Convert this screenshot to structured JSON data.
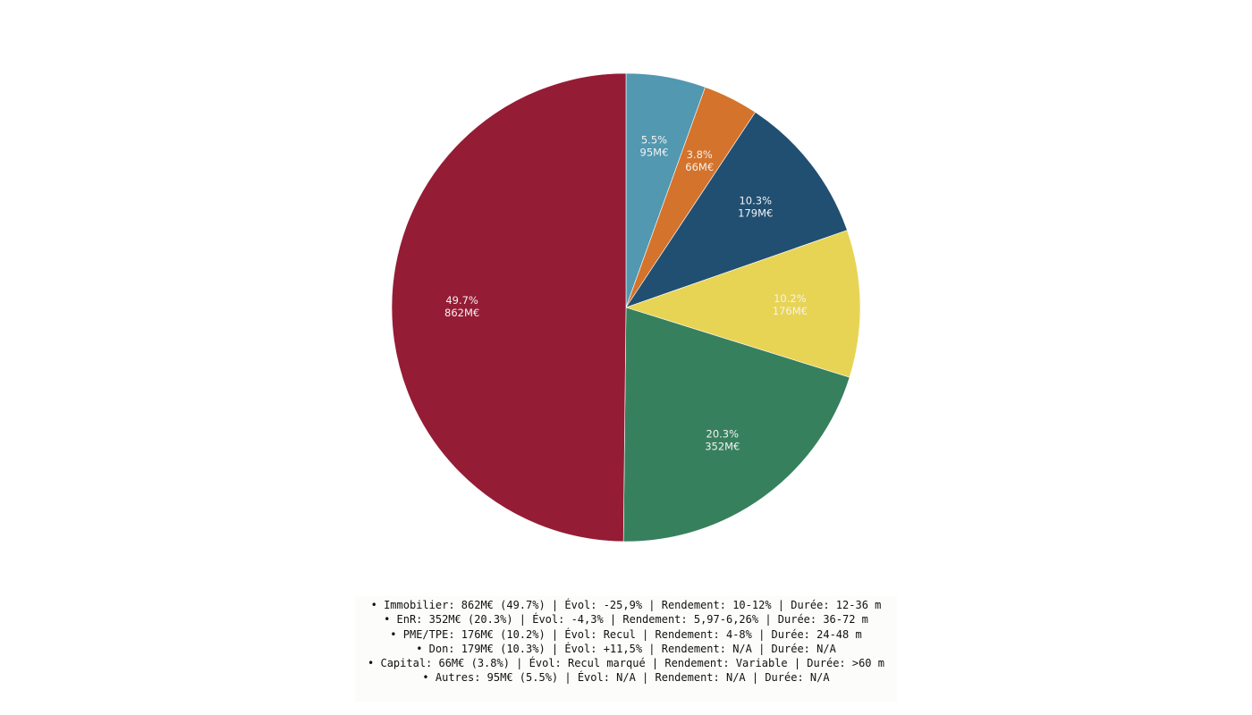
{
  "chart_data": {
    "type": "pie",
    "start_angle_deg": 90,
    "direction": "clockwise",
    "slices": [
      {
        "percent": "5.5%",
        "value": "95M€",
        "amount": 95,
        "color": "#5198b0"
      },
      {
        "percent": "3.8%",
        "value": "66M€",
        "amount": 66,
        "color": "#d4732c"
      },
      {
        "percent": "10.3%",
        "value": "179M€",
        "amount": 179,
        "color": "#214f72"
      },
      {
        "percent": "10.2%",
        "value": "176M€",
        "amount": 176,
        "color": "#e8d454"
      },
      {
        "percent": "20.3%",
        "value": "352M€",
        "amount": 352,
        "color": "#37805d"
      },
      {
        "percent": "49.7%",
        "value": "862M€",
        "amount": 862,
        "color": "#951c35"
      }
    ],
    "legend": [
      "• Immobilier: 862M€ (49.7%) | Évol: -25,9% | Rendement: 10-12% | Durée: 12-36 m",
      "• EnR: 352M€ (20.3%) | Évol: -4,3% | Rendement: 5,97-6,26% | Durée: 36-72 m",
      "• PME/TPE: 176M€ (10.2%) | Évol: Recul | Rendement: 4-8% | Durée: 24-48 m",
      "• Don: 179M€ (10.3%) | Évol: +11,5% | Rendement: N/A | Durée: N/A",
      "• Capital: 66M€ (3.8%) | Évol: Recul marqué | Rendement: Variable | Durée: >60 m",
      "• Autres: 95M€ (5.5%) | Évol: N/A | Rendement: N/A | Durée: N/A"
    ]
  }
}
